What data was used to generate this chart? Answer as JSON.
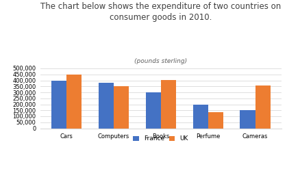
{
  "title_line1": "The chart below shows the expenditure of two countries on",
  "title_line2": "consumer goods in 2010.",
  "subtitle": "(pounds sterling)",
  "categories": [
    "Cars",
    "Computers",
    "Books",
    "Perfume",
    "Cameras"
  ],
  "france_values": [
    400000,
    380000,
    300000,
    200000,
    150000
  ],
  "uk_values": [
    450000,
    350000,
    405000,
    135000,
    360000
  ],
  "france_color": "#4472c4",
  "uk_color": "#ed7d31",
  "ylim": [
    0,
    500000
  ],
  "yticks": [
    0,
    50000,
    100000,
    150000,
    200000,
    250000,
    300000,
    350000,
    400000,
    450000,
    500000
  ],
  "legend_labels": [
    "France",
    "UK"
  ],
  "background_color": "#ffffff",
  "title_fontsize": 8.5,
  "subtitle_fontsize": 6.5,
  "tick_fontsize": 6.0,
  "legend_fontsize": 6.5,
  "bar_width": 0.32,
  "title_color": "#404040",
  "subtitle_color": "#606060",
  "grid_color": "#d9d9d9",
  "spine_color": "#d9d9d9"
}
